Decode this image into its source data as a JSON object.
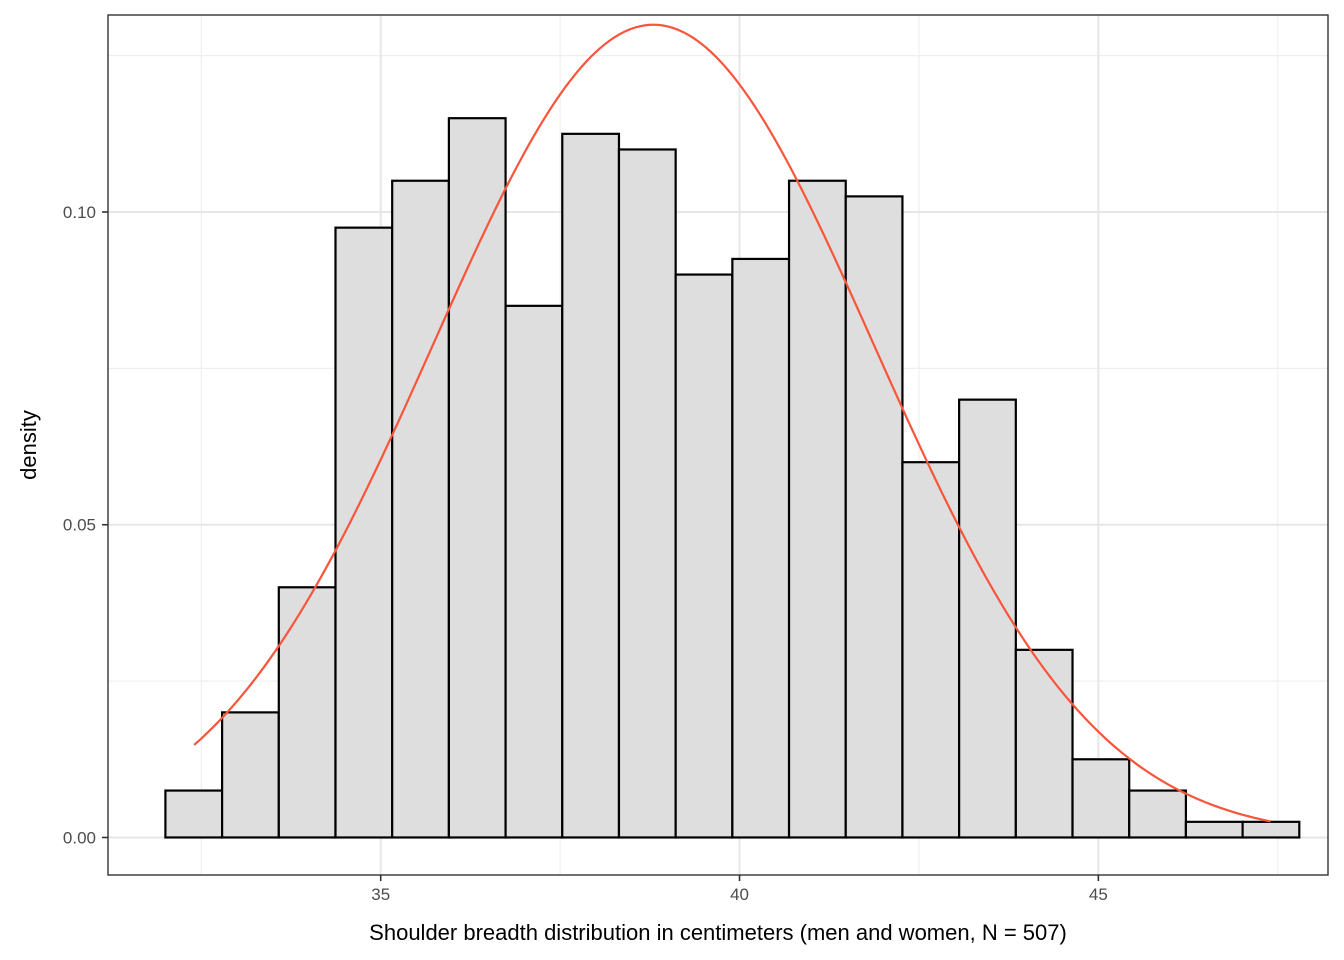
{
  "chart_data": {
    "type": "bar",
    "subtype": "histogram",
    "xlabel": "Shoulder breadth distribution in centimeters (men and women, N = 507)",
    "ylabel": "density",
    "xlim": [
      31.2,
      48.2
    ],
    "ylim": [
      -0.006,
      0.1315
    ],
    "x_ticks": [
      35,
      40,
      45
    ],
    "x_tick_labels": [
      "35",
      "40",
      "45"
    ],
    "y_ticks": [
      0.0,
      0.05,
      0.1
    ],
    "y_tick_labels": [
      "0.00",
      "0.05",
      "0.10"
    ],
    "grid": true,
    "legend": "none",
    "histogram": {
      "bin_edges": [
        32.0,
        32.79,
        33.58,
        34.37,
        35.16,
        35.95,
        36.74,
        37.53,
        38.32,
        39.11,
        39.9,
        40.69,
        41.48,
        42.27,
        43.06,
        43.85,
        44.64,
        45.43,
        46.22,
        47.01,
        47.8
      ],
      "densities": [
        0.0075,
        0.02,
        0.04,
        0.0975,
        0.105,
        0.115,
        0.085,
        0.1125,
        0.11,
        0.09,
        0.0925,
        0.105,
        0.1025,
        0.06,
        0.07,
        0.03,
        0.0125,
        0.0075,
        0.0025,
        0.0025
      ],
      "fill_color": "#dedede",
      "edge_color": "#000000"
    },
    "normal_curve": {
      "mean": 38.8,
      "sd": 3.07,
      "x_range": [
        32.4,
        47.4
      ],
      "color": "#f8553a"
    }
  }
}
